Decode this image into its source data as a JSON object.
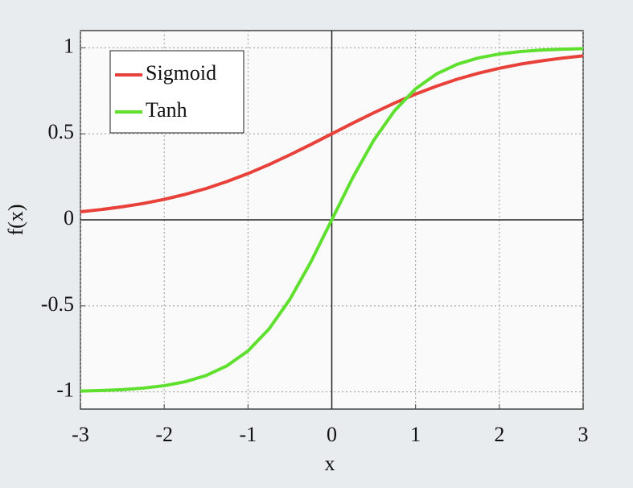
{
  "chart_data": {
    "type": "line",
    "x_label": "x",
    "y_label": "f(x)",
    "x": [
      -3,
      -2.75,
      -2.5,
      -2.25,
      -2,
      -1.75,
      -1.5,
      -1.25,
      -1,
      -0.75,
      -0.5,
      -0.25,
      0,
      0.25,
      0.5,
      0.75,
      1,
      1.25,
      1.5,
      1.75,
      2,
      2.25,
      2.5,
      2.75,
      3
    ],
    "series": [
      {
        "name": "Sigmoid",
        "color": "#e8413a",
        "values": [
          0.047,
          0.06,
          0.076,
          0.095,
          0.119,
          0.148,
          0.182,
          0.223,
          0.269,
          0.321,
          0.378,
          0.438,
          0.5,
          0.562,
          0.622,
          0.679,
          0.731,
          0.777,
          0.818,
          0.852,
          0.881,
          0.905,
          0.924,
          0.94,
          0.953
        ]
      },
      {
        "name": "Tanh",
        "color": "#5fe02f",
        "values": [
          -0.995,
          -0.992,
          -0.987,
          -0.978,
          -0.964,
          -0.941,
          -0.905,
          -0.848,
          -0.762,
          -0.635,
          -0.462,
          -0.245,
          0,
          0.245,
          0.462,
          0.635,
          0.762,
          0.848,
          0.905,
          0.941,
          0.964,
          0.978,
          0.987,
          0.992,
          0.995
        ]
      }
    ],
    "xlim": [
      -3,
      3
    ],
    "xticks": [
      -3,
      -2,
      -1,
      0,
      1,
      2,
      3
    ],
    "ylim": [
      -1.1,
      1.1
    ],
    "yticks": [
      -1,
      -0.5,
      0,
      0.5,
      1
    ],
    "grid": true,
    "legend": "upper left"
  }
}
